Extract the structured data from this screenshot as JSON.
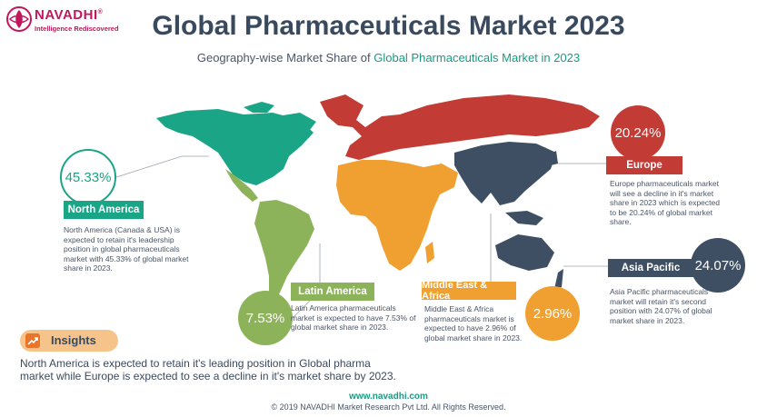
{
  "logo": {
    "name": "NAVADHI",
    "registered": "®",
    "tagline": "Intelligence Rediscovered",
    "color": "#c2185b"
  },
  "title": "Global Pharmaceuticals Market 2023",
  "subtitle": {
    "prefix": "Geography-wise Market Share of ",
    "highlight": "Global Pharmaceuticals Market in 2023"
  },
  "chart_data": {
    "type": "pie",
    "unit": "%",
    "categories": [
      "North America",
      "Europe",
      "Asia Pacific",
      "Latin America",
      "Middle East & Africa"
    ],
    "values": [
      45.33,
      20.24,
      24.07,
      7.53,
      2.96
    ],
    "colors": [
      "#1aa587",
      "#c23b35",
      "#3e4e63",
      "#8db35a",
      "#f0a031"
    ]
  },
  "regions": {
    "north_america": {
      "value_label": "45.33%",
      "name": "North America",
      "description": "North America (Canada & USA) is expected to retain it's leadership position in global pharmaceuticals market with 45.33% of global market share in 2023."
    },
    "europe": {
      "value_label": "20.24%",
      "name": "Europe",
      "description": "Europe pharmaceuticals market will see a decline in it's market share in 2023 which is expected to be 20.24% of global market share."
    },
    "latin_america": {
      "value_label": "7.53%",
      "name": "Latin America",
      "description": "Latin America pharmaceuticals market is expected to have 7.53% of global market share in 2023."
    },
    "middle_east_africa": {
      "value_label": "2.96%",
      "name": "Middle East & Africa",
      "description": "Middle East & Africa pharmaceuticals market is expected to have 2.96% of global market share in 2023."
    },
    "asia_pacific": {
      "value_label": "24.07%",
      "name": "Asia Pacific",
      "description": "Asia Pacific pharmaceuticals market will retain it's second position with 24.07% of global market share in 2023."
    }
  },
  "insights": {
    "label": "Insights",
    "icon": "trend-icon",
    "text": "North America is expected to retain it's leading position in Global pharma market while Europe is expected to see a decline in it's market share by 2023."
  },
  "footer": {
    "url": "www.navadhi.com",
    "copyright": "© 2019 NAVADHI Market Research Pvt Ltd. All Rights Reserved."
  }
}
